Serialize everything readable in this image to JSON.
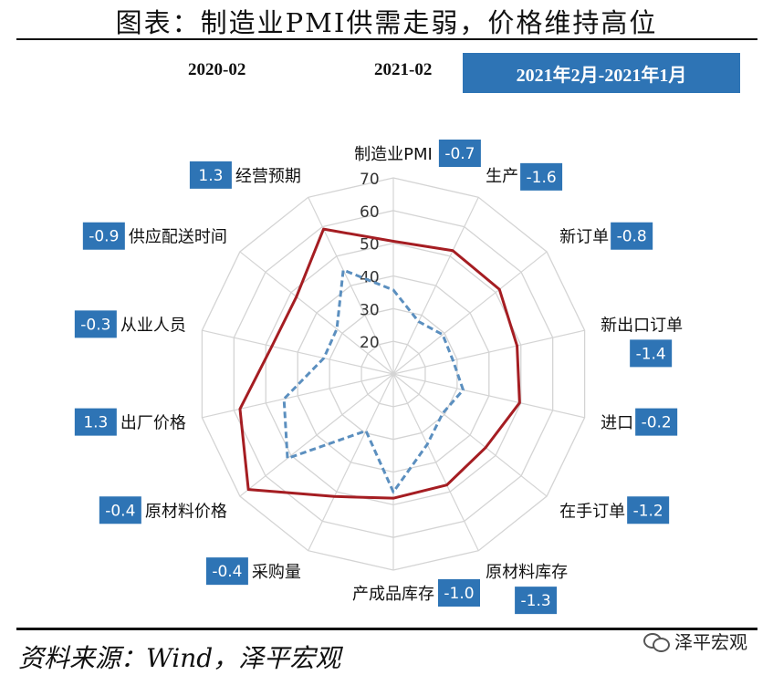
{
  "title": "图表：制造业PMI供需走弱，价格维持高位",
  "period_label": "2021年2月-2021年1月",
  "source": "资料来源：Wind，泽平宏观",
  "brand": "泽平宏观",
  "chart_data": {
    "type": "radar",
    "axes": [
      "制造业PMI",
      "生产",
      "新订单",
      "新出口订单",
      "进口",
      "在手订单",
      "原材料库存",
      "产成品库存",
      "采购量",
      "原材料价格",
      "出厂价格",
      "从业人员",
      "供应配送时间",
      "经营预期"
    ],
    "changes": [
      "-0.7",
      "-1.6",
      "-0.8",
      "-1.4",
      "-0.2",
      "-1.2",
      "-1.3",
      "-1.0",
      "-0.4",
      "-0.4",
      "1.3",
      "-0.3",
      "-0.9",
      "1.3"
    ],
    "rings": [
      20,
      30,
      40,
      50,
      60,
      70
    ],
    "series": [
      {
        "name": "2020-02",
        "color": "#5b8fbf",
        "style": "dashed",
        "values": [
          35.7,
          27.8,
          29.3,
          28.7,
          31.9,
          29.3,
          33.9,
          46.1,
          29.3,
          51.4,
          44.3,
          31.8,
          32.1,
          45.3
        ]
      },
      {
        "name": "2021-02",
        "color": "#a51d22",
        "style": "solid",
        "values": [
          50.6,
          51.9,
          51.5,
          48.8,
          49.6,
          46.1,
          47.7,
          48.0,
          51.6,
          66.7,
          58.1,
          48.1,
          47.9,
          59.2
        ]
      }
    ],
    "rmin": 10,
    "rmax": 70,
    "grid": true,
    "legend": "top"
  }
}
